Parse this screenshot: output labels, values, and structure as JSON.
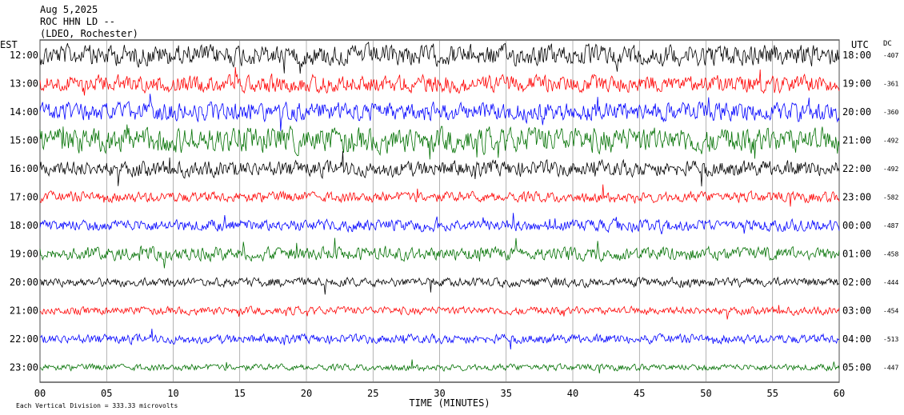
{
  "header": {
    "date": "Aug 5,2025",
    "station": "ROC HHN LD --",
    "network": "(LDEO, Rochester)"
  },
  "labels": {
    "left_zone": "EST",
    "right_zone": "UTC",
    "dc_label": "DC",
    "footer_note": "Each Vertical Division = 333.33 microvolts"
  },
  "colors": {
    "trace_cycle": [
      "#000000",
      "#ff0000",
      "#0000ff",
      "#007000"
    ],
    "grid": "#808080",
    "text": "#000000"
  },
  "chart_data": {
    "type": "line",
    "description_free": true,
    "xlabel": "TIME (MINUTES)",
    "xlim": [
      0,
      60
    ],
    "x_ticks": [
      "00",
      "05",
      "10",
      "15",
      "20",
      "25",
      "30",
      "35",
      "40",
      "45",
      "50",
      "55",
      "60"
    ],
    "rows": [
      {
        "est": "12:00",
        "utc": "18:00",
        "dc": "-407",
        "color": "#000000",
        "amplitude": 1.6
      },
      {
        "est": "13:00",
        "utc": "19:00",
        "dc": "-361",
        "color": "#ff0000",
        "amplitude": 1.3
      },
      {
        "est": "14:00",
        "utc": "20:00",
        "dc": "-360",
        "color": "#0000ff",
        "amplitude": 1.4
      },
      {
        "est": "15:00",
        "utc": "21:00",
        "dc": "-492",
        "color": "#007000",
        "amplitude": 1.9
      },
      {
        "est": "16:00",
        "utc": "22:00",
        "dc": "-492",
        "color": "#000000",
        "amplitude": 1.2
      },
      {
        "est": "17:00",
        "utc": "23:00",
        "dc": "-582",
        "color": "#ff0000",
        "amplitude": 0.8
      },
      {
        "est": "18:00",
        "utc": "00:00",
        "dc": "-487",
        "color": "#0000ff",
        "amplitude": 0.9
      },
      {
        "est": "19:00",
        "utc": "01:00",
        "dc": "-458",
        "color": "#007000",
        "amplitude": 1.0
      },
      {
        "est": "20:00",
        "utc": "02:00",
        "dc": "-444",
        "color": "#000000",
        "amplitude": 0.7
      },
      {
        "est": "21:00",
        "utc": "03:00",
        "dc": "-454",
        "color": "#ff0000",
        "amplitude": 0.6
      },
      {
        "est": "22:00",
        "utc": "04:00",
        "dc": "-513",
        "color": "#0000ff",
        "amplitude": 0.7
      },
      {
        "est": "23:00",
        "utc": "05:00",
        "dc": "-447",
        "color": "#007000",
        "amplitude": 0.5
      }
    ]
  }
}
